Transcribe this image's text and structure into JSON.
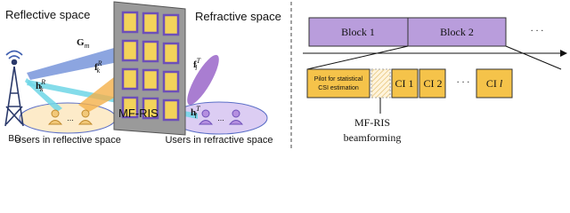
{
  "left": {
    "reflective_space": "Reflective space",
    "refractive_space": "Refractive space",
    "bs": "BS",
    "ris": "MF-RIS",
    "users_reflective": "Users in reflective space",
    "users_refractive": "Users in refractive space",
    "ellipsis_reflective": "...",
    "ellipsis_refractive": "...",
    "channels": [
      {
        "base": "G",
        "sub": "m"
      },
      {
        "base": "f",
        "sub": "k",
        "sup": "R"
      },
      {
        "base": "f",
        "sub": "l",
        "sup": "T"
      },
      {
        "base": "h",
        "sub": "k",
        "sup": "R"
      },
      {
        "base": "h",
        "sub": "l",
        "sup": "T"
      }
    ]
  },
  "right": {
    "blocks": [
      "Block 1",
      "Block 2"
    ],
    "blocks_ellipsis": "· · ·",
    "pilot": [
      "Pilot for statistical",
      "CSI estimation"
    ],
    "ci": [
      "CI 1",
      "CI 2"
    ],
    "ci_ellipsis": "· · ·",
    "ci_last": {
      "base": "CI",
      "var": "l"
    },
    "caption": [
      "MF-RIS",
      "beamforming"
    ]
  }
}
